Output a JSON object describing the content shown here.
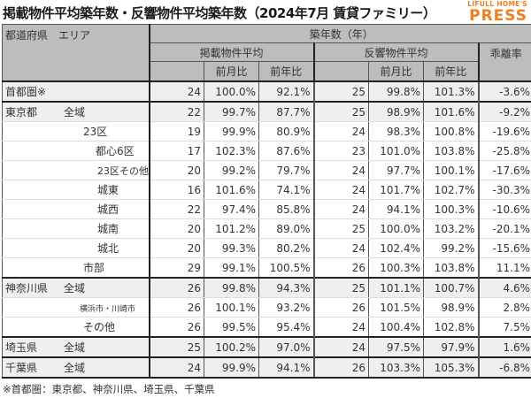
{
  "title": "掲載物件平均築年数・反響物件平均築年数（2024年7月 賃貸ファミリー）",
  "logo": {
    "line1": "LIFULL HOME'S",
    "line2": "PRESS",
    "color": "#f07e1e"
  },
  "header": {
    "area": "都道府県　エリア",
    "group": "築年数（年）",
    "listed": "掲載物件平均",
    "inquired": "反響物件平均",
    "gap": "乖離率",
    "mom": "前月比",
    "yoy": "前年比"
  },
  "rows": [
    {
      "pref": "首都圏※",
      "area": "",
      "listed": "24",
      "listed_mom": "100.0%",
      "listed_yoy": "92.1%",
      "inq": "25",
      "inq_mom": "99.8%",
      "inq_yoy": "101.3%",
      "gap": "-3.6%"
    },
    {
      "pref": "東京都",
      "area": "全域",
      "listed": "22",
      "listed_mom": "99.7%",
      "listed_yoy": "87.7%",
      "inq": "25",
      "inq_mom": "98.9%",
      "inq_yoy": "101.6%",
      "gap": "-9.2%"
    },
    {
      "pref": "",
      "area": "23区",
      "listed": "19",
      "listed_mom": "99.9%",
      "listed_yoy": "80.9%",
      "inq": "24",
      "inq_mom": "98.3%",
      "inq_yoy": "100.8%",
      "gap": "-19.6%"
    },
    {
      "pref": "",
      "area": "都心6区",
      "listed": "17",
      "listed_mom": "102.3%",
      "listed_yoy": "87.6%",
      "inq": "23",
      "inq_mom": "101.0%",
      "inq_yoy": "103.8%",
      "gap": "-25.8%"
    },
    {
      "pref": "",
      "area": "23区その他",
      "listed": "20",
      "listed_mom": "99.2%",
      "listed_yoy": "79.7%",
      "inq": "24",
      "inq_mom": "97.7%",
      "inq_yoy": "100.1%",
      "gap": "-17.6%"
    },
    {
      "pref": "",
      "area": "城東",
      "listed": "16",
      "listed_mom": "101.6%",
      "listed_yoy": "74.1%",
      "inq": "24",
      "inq_mom": "101.7%",
      "inq_yoy": "102.7%",
      "gap": "-30.3%"
    },
    {
      "pref": "",
      "area": "城西",
      "listed": "22",
      "listed_mom": "97.4%",
      "listed_yoy": "85.8%",
      "inq": "24",
      "inq_mom": "94.1%",
      "inq_yoy": "100.3%",
      "gap": "-10.6%"
    },
    {
      "pref": "",
      "area": "城南",
      "listed": "20",
      "listed_mom": "101.2%",
      "listed_yoy": "89.0%",
      "inq": "25",
      "inq_mom": "100.0%",
      "inq_yoy": "103.2%",
      "gap": "-20.1%"
    },
    {
      "pref": "",
      "area": "城北",
      "listed": "20",
      "listed_mom": "99.3%",
      "listed_yoy": "80.2%",
      "inq": "24",
      "inq_mom": "102.4%",
      "inq_yoy": "99.2%",
      "gap": "-15.6%"
    },
    {
      "pref": "",
      "area": "市部",
      "listed": "29",
      "listed_mom": "99.1%",
      "listed_yoy": "100.5%",
      "inq": "26",
      "inq_mom": "100.3%",
      "inq_yoy": "103.8%",
      "gap": "11.1%"
    },
    {
      "pref": "神奈川県",
      "area": "全域",
      "listed": "26",
      "listed_mom": "99.8%",
      "listed_yoy": "94.3%",
      "inq": "25",
      "inq_mom": "101.1%",
      "inq_yoy": "100.7%",
      "gap": "4.6%"
    },
    {
      "pref": "",
      "area": "横浜市・川崎市",
      "listed": "26",
      "listed_mom": "100.1%",
      "listed_yoy": "93.2%",
      "inq": "26",
      "inq_mom": "101.5%",
      "inq_yoy": "98.9%",
      "gap": "2.8%"
    },
    {
      "pref": "",
      "area": "その他",
      "listed": "26",
      "listed_mom": "99.5%",
      "listed_yoy": "95.4%",
      "inq": "24",
      "inq_mom": "100.4%",
      "inq_yoy": "102.8%",
      "gap": "7.5%"
    },
    {
      "pref": "埼玉県",
      "area": "全域",
      "listed": "25",
      "listed_mom": "100.2%",
      "listed_yoy": "97.0%",
      "inq": "24",
      "inq_mom": "97.5%",
      "inq_yoy": "97.9%",
      "gap": "1.6%"
    },
    {
      "pref": "千葉県",
      "area": "全域",
      "listed": "24",
      "listed_mom": "99.9%",
      "listed_yoy": "94.1%",
      "inq": "26",
      "inq_mom": "103.3%",
      "inq_yoy": "105.3%",
      "gap": "-6.8%"
    }
  ],
  "footnote": "※首都圏：東京都、神奈川県、埼玉県、千葉県"
}
